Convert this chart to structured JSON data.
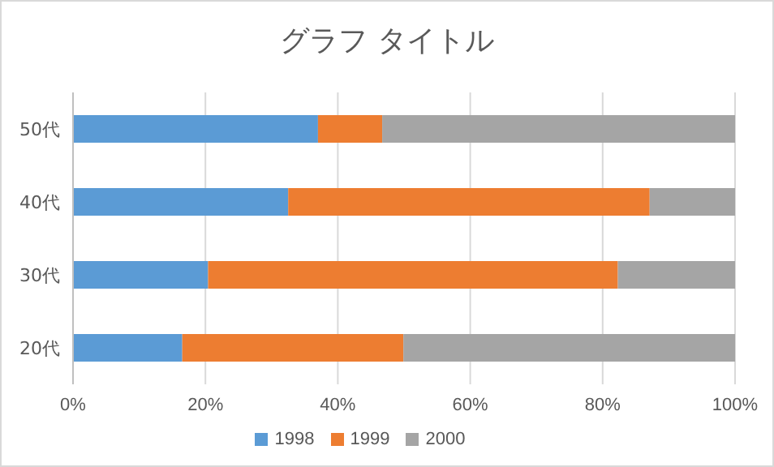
{
  "chart_data": {
    "type": "bar",
    "orientation": "horizontal",
    "stacked": true,
    "title": "グラフ タイトル",
    "categories": [
      "50代",
      "40代",
      "30代",
      "20代"
    ],
    "series": [
      {
        "name": "1998",
        "color": "#5b9bd5",
        "values": [
          37,
          32.5,
          20.4,
          16.5
        ]
      },
      {
        "name": "1999",
        "color": "#ed7d31",
        "values": [
          9.7,
          54.6,
          61.9,
          33.4
        ]
      },
      {
        "name": "2000",
        "color": "#a5a5a5",
        "values": [
          53.3,
          12.9,
          17.7,
          50.1
        ]
      }
    ],
    "xlim": [
      0,
      100
    ],
    "xticks": [
      {
        "value": 0,
        "label": "0%"
      },
      {
        "value": 20,
        "label": "20%"
      },
      {
        "value": 40,
        "label": "40%"
      },
      {
        "value": 60,
        "label": "60%"
      },
      {
        "value": 80,
        "label": "80%"
      },
      {
        "value": 100,
        "label": "100%"
      }
    ],
    "grid": "x",
    "legend": "bottom"
  }
}
